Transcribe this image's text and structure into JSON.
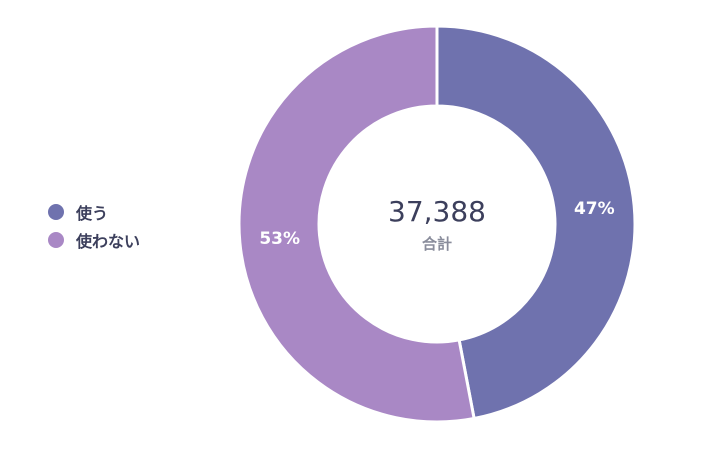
{
  "chart_data": {
    "type": "pie",
    "variant": "donut",
    "categories": [
      "使う",
      "使わない"
    ],
    "values": [
      47,
      53
    ],
    "value_labels": [
      "47%",
      "53%"
    ],
    "colors": [
      "#6f72ae",
      "#a988c5"
    ],
    "center_total": "37,388",
    "center_caption": "合計",
    "legend_position": "left"
  }
}
